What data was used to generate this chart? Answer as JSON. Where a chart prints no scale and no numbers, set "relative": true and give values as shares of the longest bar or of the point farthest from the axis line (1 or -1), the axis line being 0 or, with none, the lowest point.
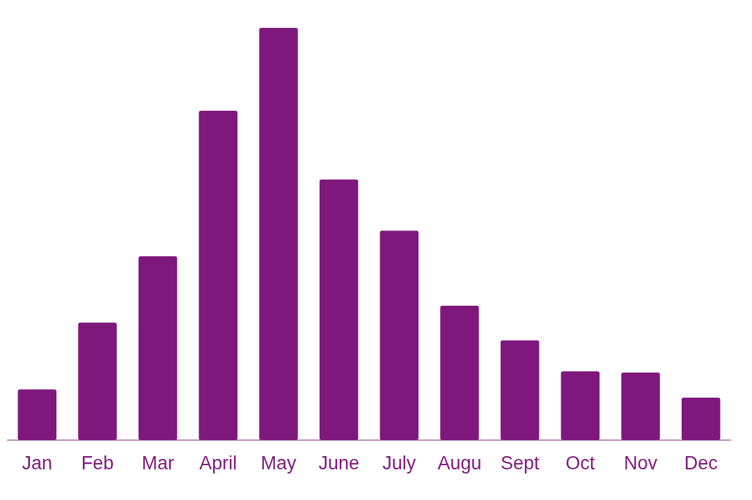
{
  "chart_data": {
    "type": "bar",
    "relative": true,
    "categories": [
      "Jan",
      "Feb",
      "Mar",
      "April",
      "May",
      "June",
      "July",
      "Augu",
      "Sept",
      "Oct",
      "Nov",
      "Dec"
    ],
    "values": [
      0.123,
      0.285,
      0.446,
      0.799,
      1,
      0.632,
      0.508,
      0.326,
      0.242,
      0.167,
      0.164,
      0.103
    ],
    "color": "#7f187c"
  }
}
